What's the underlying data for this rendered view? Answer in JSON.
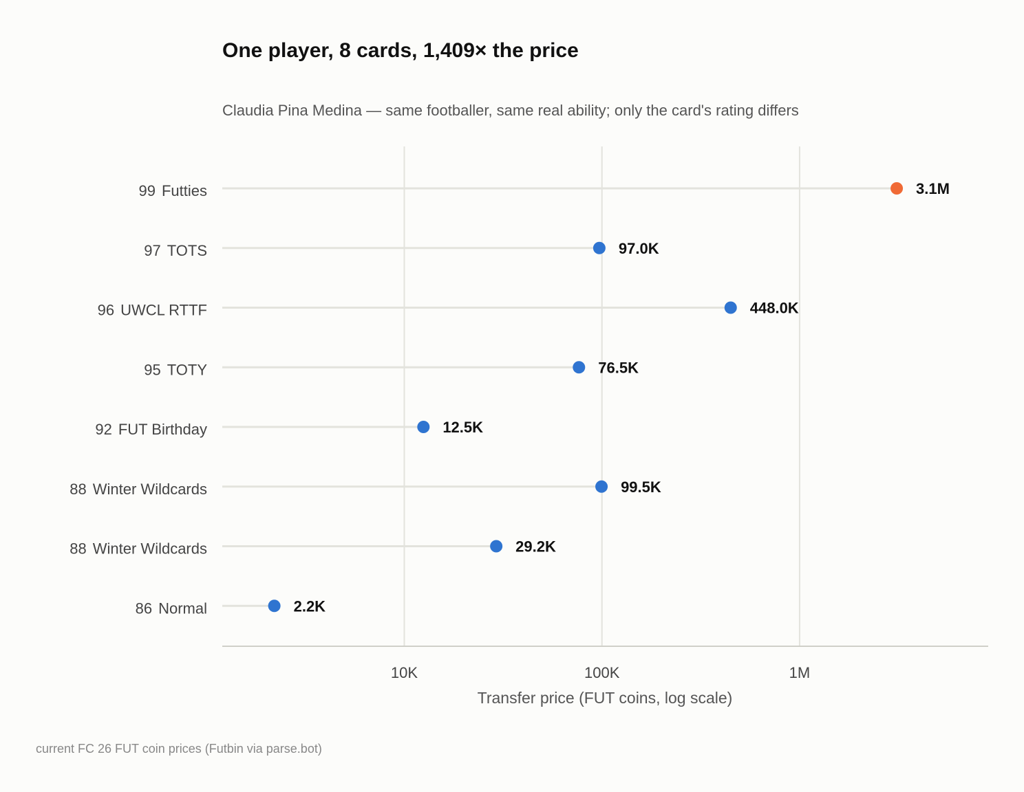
{
  "chart_data": {
    "type": "scatter",
    "title": "One player, 8 cards, 1,409× the price",
    "subtitle": "Claudia Pina Medina — same footballer, same real ability; only the card's rating differs",
    "xlabel": "Transfer price (FUT coins, log scale)",
    "ylabel": "",
    "x_scale": "log",
    "xlim": [
      1200,
      9000000
    ],
    "x_ticks": [
      {
        "value": 10000,
        "label": "10K"
      },
      {
        "value": 100000,
        "label": "100K"
      },
      {
        "value": 1000000,
        "label": "1M"
      }
    ],
    "grid": "vertical",
    "caption": "current FC 26 FUT coin prices (Futbin via parse.bot)",
    "points": [
      {
        "rating": "99",
        "card": "Futties",
        "value": 3100000,
        "label": "3.1M",
        "highlight": true
      },
      {
        "rating": "97",
        "card": "TOTS",
        "value": 97000,
        "label": "97.0K",
        "highlight": false
      },
      {
        "rating": "96",
        "card": "UWCL RTTF",
        "value": 448000,
        "label": "448.0K",
        "highlight": false
      },
      {
        "rating": "95",
        "card": "TOTY",
        "value": 76500,
        "label": "76.5K",
        "highlight": false
      },
      {
        "rating": "92",
        "card": "FUT Birthday",
        "value": 12500,
        "label": "12.5K",
        "highlight": false
      },
      {
        "rating": "88",
        "card": "Winter Wildcards",
        "value": 99500,
        "label": "99.5K",
        "highlight": false
      },
      {
        "rating": "88",
        "card": "Winter Wildcards",
        "value": 29200,
        "label": "29.2K",
        "highlight": false
      },
      {
        "rating": "86",
        "card": "Normal",
        "value": 2200,
        "label": "2.2K",
        "highlight": false
      }
    ],
    "colors": {
      "point": "#2f74d0",
      "highlight": "#f06a35",
      "stem": "#e3e3dd",
      "grid": "#e3e3dd",
      "axis": "#cfcfc8"
    }
  }
}
